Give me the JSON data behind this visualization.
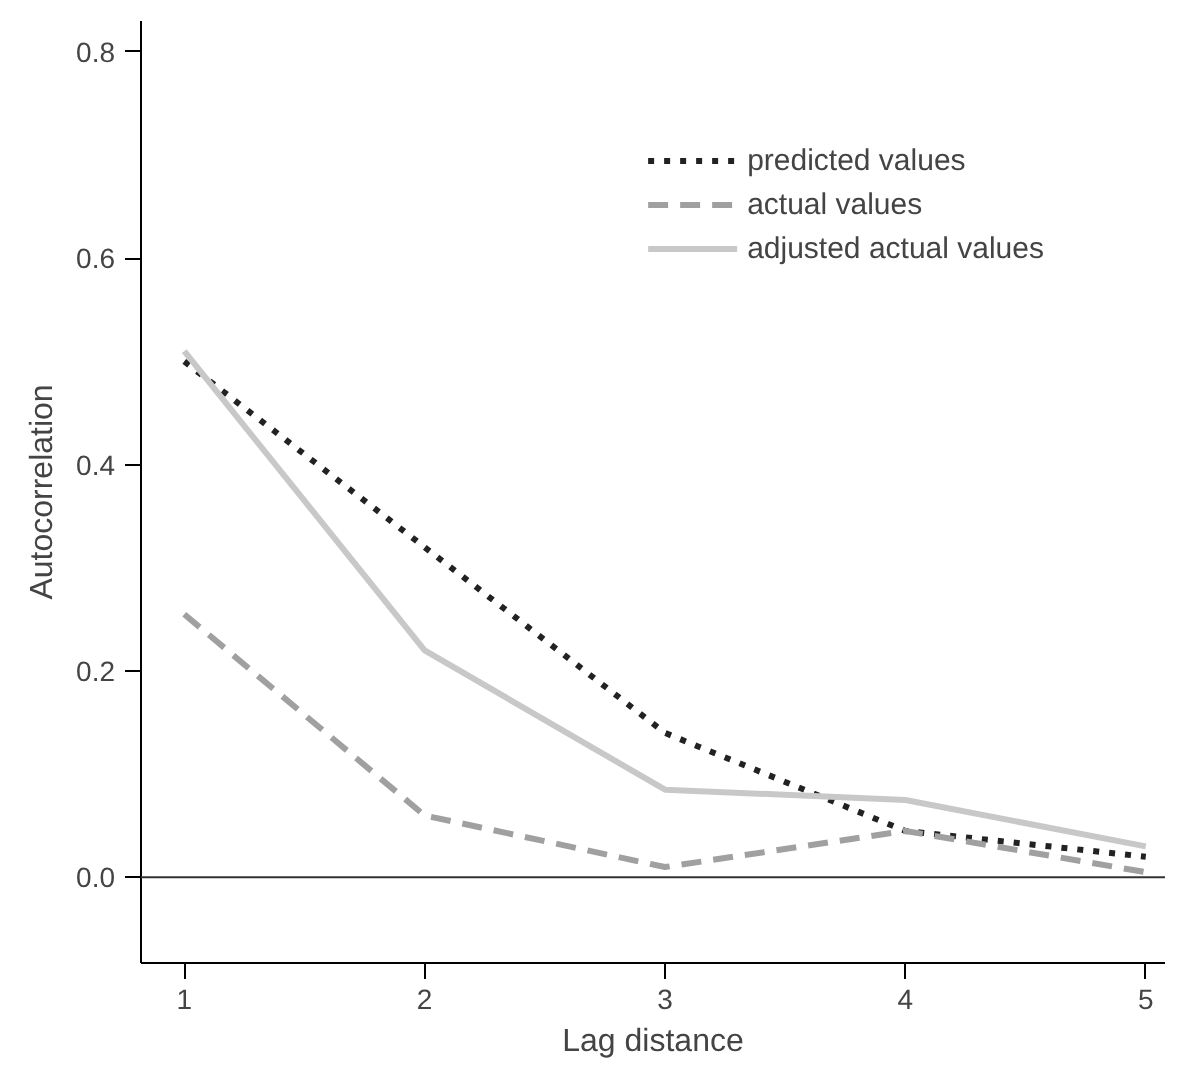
{
  "chart_data": {
    "type": "line",
    "xlabel": "Lag distance",
    "ylabel": "Autocorrelation",
    "x": [
      1,
      2,
      3,
      4,
      5
    ],
    "series": [
      {
        "name": "predicted values",
        "color": "#222222",
        "line_style": "dotted",
        "values": [
          0.5,
          0.32,
          0.14,
          0.045,
          0.02
        ]
      },
      {
        "name": "actual values",
        "color": "#a0a0a0",
        "line_style": "dashed",
        "values": [
          0.255,
          0.06,
          0.01,
          0.045,
          0.005
        ]
      },
      {
        "name": "adjusted actual values",
        "color": "#c8c8c8",
        "line_style": "solid",
        "values": [
          0.51,
          0.22,
          0.085,
          0.075,
          0.03
        ]
      }
    ],
    "xlim": [
      0.82,
      5.08
    ],
    "ylim": [
      -0.083,
      0.83
    ],
    "xticks": [
      1,
      2,
      3,
      4,
      5
    ],
    "yticks": [
      {
        "value": 0,
        "label": "0.0"
      },
      {
        "value": 0.2,
        "label": "0.2"
      },
      {
        "value": 0.4,
        "label": "0.4"
      },
      {
        "value": 0.6,
        "label": "0.6"
      },
      {
        "value": 0.8,
        "label": "0.8"
      }
    ],
    "ref_lines": [
      {
        "axis": "y",
        "value": 0,
        "label": null,
        "color": "#333333",
        "line_style": "solid"
      }
    ],
    "grid": false,
    "legend": "top right",
    "marker": "none"
  }
}
